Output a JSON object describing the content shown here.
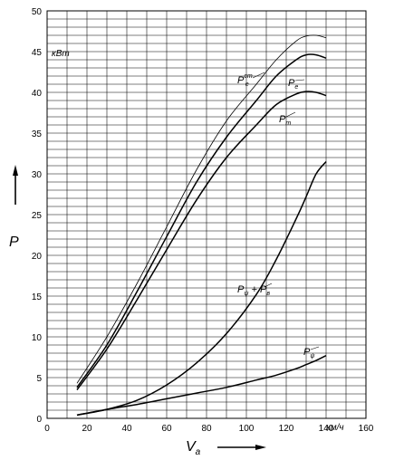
{
  "chart_data": {
    "type": "line",
    "ylabel": "P",
    "xlabel": "V",
    "xlabel_sub": "a",
    "y_unit": "кВт",
    "x_unit": "км/ч",
    "xlim": [
      0,
      160
    ],
    "ylim": [
      0,
      50
    ],
    "x_ticks": [
      "0",
      "20",
      "40",
      "60",
      "80",
      "100",
      "120",
      "140",
      "160"
    ],
    "y_ticks": [
      "0",
      "5",
      "10",
      "15",
      "20",
      "25",
      "30",
      "35",
      "40",
      "45",
      "50"
    ],
    "grid": true,
    "series": [
      {
        "name": "Pₑᶜᵀ",
        "label_main": "P",
        "label_sub": "e",
        "label_sup": "ст",
        "x": [
          15,
          30,
          45,
          60,
          75,
          90,
          105,
          115,
          125,
          130,
          135,
          140
        ],
        "y": [
          4.3,
          10,
          16.5,
          23.5,
          30.5,
          36.5,
          41,
          44,
          46.3,
          46.9,
          47,
          46.7
        ]
      },
      {
        "name": "Pₑ",
        "label_main": "P",
        "label_sub": "e",
        "label_sup": "",
        "x": [
          15,
          30,
          45,
          60,
          75,
          90,
          105,
          115,
          125,
          130,
          135,
          140
        ],
        "y": [
          3.8,
          9,
          15.5,
          22.3,
          29,
          34.5,
          39,
          42,
          44,
          44.6,
          44.6,
          44.2
        ]
      },
      {
        "name": "Pₜ",
        "label_main": "P",
        "label_sub": "т",
        "label_sup": "",
        "x": [
          15,
          30,
          45,
          60,
          75,
          90,
          105,
          115,
          125,
          130,
          135,
          140
        ],
        "y": [
          3.5,
          8.5,
          14.5,
          20.7,
          26.8,
          32,
          36,
          38.5,
          39.8,
          40.1,
          40,
          39.6
        ]
      },
      {
        "name": "Pψ + Pв",
        "label_main": "P",
        "label_sub": "ψ",
        "label_mid": " + P",
        "label_sub2": "в",
        "x": [
          15,
          30,
          45,
          60,
          75,
          90,
          105,
          115,
          125,
          130,
          135,
          140
        ],
        "y": [
          0.4,
          1.1,
          2.2,
          4.1,
          6.8,
          10.4,
          15.2,
          19.5,
          24.5,
          27.2,
          30,
          31.5
        ]
      },
      {
        "name": "Pψ",
        "label_main": "P",
        "label_sub": "ψ",
        "label_sup": "",
        "x": [
          15,
          30,
          45,
          60,
          75,
          90,
          105,
          115,
          125,
          130,
          135,
          140
        ],
        "y": [
          0.4,
          1.1,
          1.7,
          2.4,
          3.1,
          3.8,
          4.7,
          5.3,
          6.1,
          6.6,
          7.1,
          7.7
        ]
      }
    ]
  }
}
